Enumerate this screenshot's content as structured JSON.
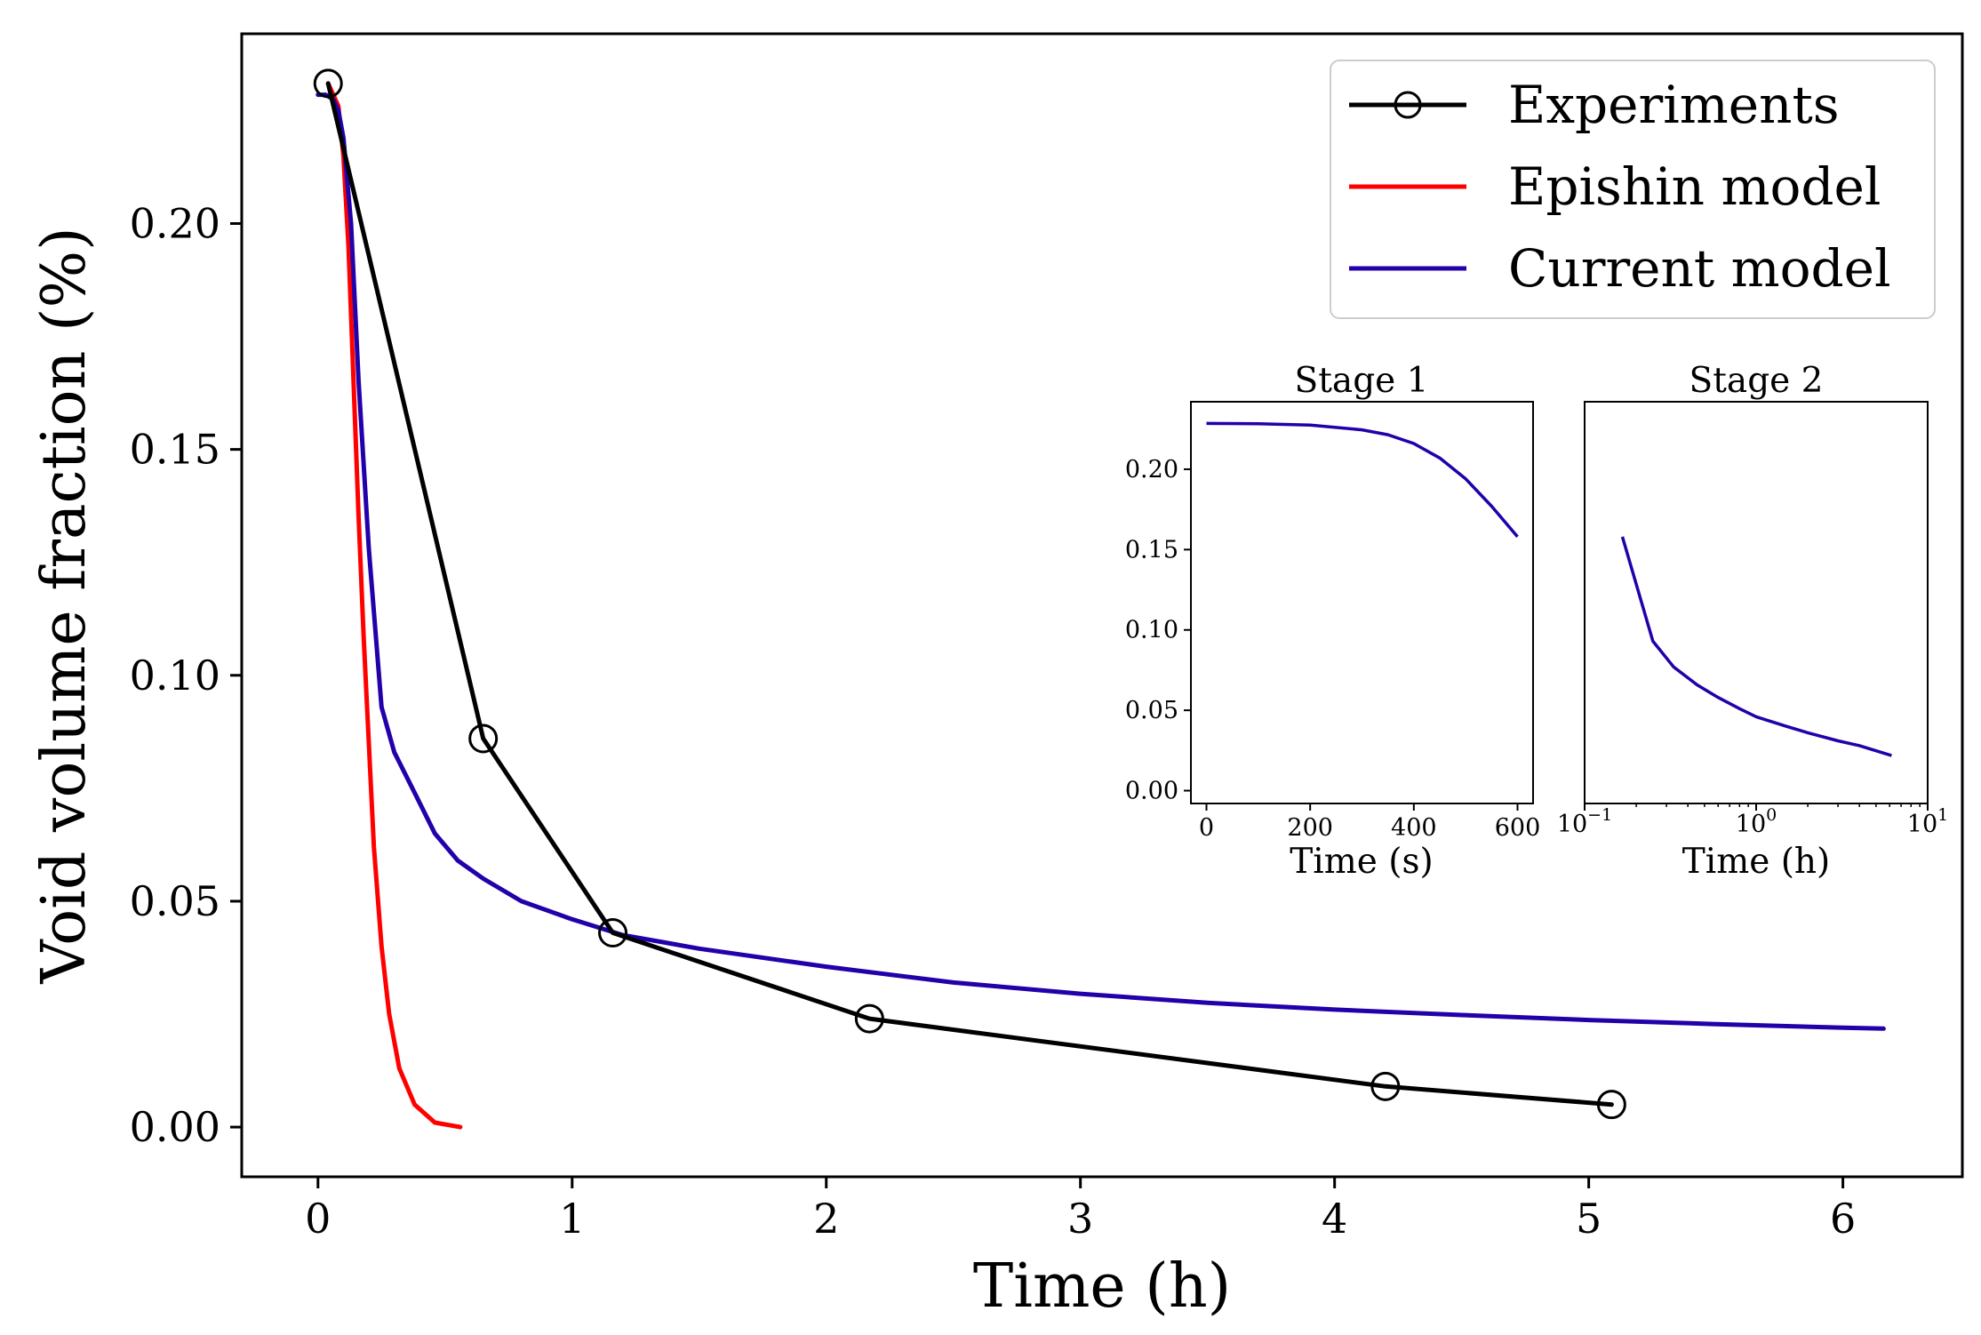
{
  "chart_data": [
    {
      "type": "line",
      "xlabel": "Time (h)",
      "ylabel": "Void volume fraction (%)",
      "xlim": [
        -0.3,
        6.47
      ],
      "ylim": [
        -0.011,
        0.242
      ],
      "xticks": [
        0,
        1,
        2,
        3,
        4,
        5,
        6
      ],
      "xtick_labels": [
        "0",
        "1",
        "2",
        "3",
        "4",
        "5",
        "6"
      ],
      "yticks": [
        0.0,
        0.05,
        0.1,
        0.15,
        0.2
      ],
      "ytick_labels": [
        "0.00",
        "0.05",
        "0.10",
        "0.15",
        "0.20"
      ],
      "legend_position": "top-right",
      "series": [
        {
          "name": "Experiments",
          "color": "#000000",
          "marker": "open-circle",
          "x": [
            0.04,
            0.65,
            1.16,
            2.17,
            4.2,
            5.09
          ],
          "y": [
            0.231,
            0.086,
            0.043,
            0.024,
            0.009,
            0.005
          ]
        },
        {
          "name": "Epishin model",
          "color": "#ff0000",
          "marker": "none",
          "x": [
            0.04,
            0.08,
            0.1,
            0.12,
            0.14,
            0.16,
            0.18,
            0.2,
            0.22,
            0.25,
            0.28,
            0.32,
            0.38,
            0.46,
            0.56
          ],
          "y": [
            0.231,
            0.226,
            0.215,
            0.195,
            0.165,
            0.135,
            0.108,
            0.085,
            0.062,
            0.04,
            0.025,
            0.013,
            0.005,
            0.001,
            0.0
          ]
        },
        {
          "name": "Current model",
          "color": "#2200aa",
          "marker": "none",
          "x": [
            0.0,
            0.03,
            0.06,
            0.08,
            0.1,
            0.13,
            0.16,
            0.2,
            0.25,
            0.3,
            0.38,
            0.46,
            0.55,
            0.65,
            0.8,
            1.0,
            1.2,
            1.5,
            2.0,
            2.5,
            3.0,
            3.5,
            4.0,
            4.5,
            5.0,
            5.5,
            6.0,
            6.16
          ],
          "y": [
            0.2285,
            0.2285,
            0.2275,
            0.225,
            0.219,
            0.2,
            0.165,
            0.128,
            0.093,
            0.083,
            0.074,
            0.065,
            0.059,
            0.055,
            0.05,
            0.046,
            0.0425,
            0.0395,
            0.0355,
            0.032,
            0.0295,
            0.0275,
            0.026,
            0.0248,
            0.0237,
            0.0228,
            0.022,
            0.0218
          ]
        }
      ]
    },
    {
      "type": "line",
      "title": "Stage 1",
      "xlabel": "Time (s)",
      "ylabel": "",
      "xlim": [
        -30,
        630
      ],
      "ylim": [
        -0.008,
        0.242
      ],
      "xticks": [
        0,
        200,
        400,
        600
      ],
      "xtick_labels": [
        "0",
        "200",
        "400",
        "600"
      ],
      "yticks": [
        0.0,
        0.05,
        0.1,
        0.15,
        0.2
      ],
      "ytick_labels": [
        "0.00",
        "0.05",
        "0.10",
        "0.15",
        "0.20"
      ],
      "series": [
        {
          "name": "Current model",
          "color": "#2200aa",
          "x": [
            0,
            100,
            200,
            300,
            350,
            400,
            450,
            500,
            550,
            600
          ],
          "y": [
            0.2285,
            0.2283,
            0.2275,
            0.2245,
            0.2215,
            0.216,
            0.207,
            0.194,
            0.177,
            0.158
          ]
        }
      ]
    },
    {
      "type": "line",
      "title": "Stage 2",
      "xlabel": "Time (h)",
      "ylabel": "",
      "xscale": "log",
      "xlim": [
        0.1,
        10
      ],
      "ylim": [
        -0.008,
        0.242
      ],
      "xtick_labels": [
        "10",
        "−1",
        "10",
        "0",
        "10",
        "1"
      ],
      "series": [
        {
          "name": "Current model",
          "color": "#2200aa",
          "x": [
            0.166,
            0.25,
            0.33,
            0.45,
            0.6,
            0.8,
            1.0,
            1.5,
            2.0,
            3.0,
            4.0,
            6.16
          ],
          "y": [
            0.158,
            0.093,
            0.077,
            0.066,
            0.058,
            0.051,
            0.046,
            0.04,
            0.036,
            0.031,
            0.028,
            0.0218
          ]
        }
      ]
    }
  ]
}
